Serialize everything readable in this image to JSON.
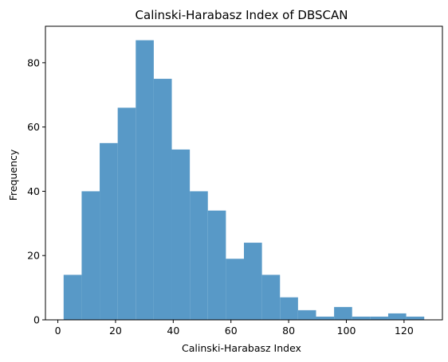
{
  "chart_data": {
    "type": "bar",
    "subtype": "histogram",
    "title": "Calinski-Harabasz Index of DBSCAN",
    "xlabel": "Calinski-Harabasz Index",
    "ylabel": "Frequency",
    "xlim": [
      -4.3,
      133.3
    ],
    "ylim": [
      0,
      91.35
    ],
    "x_ticks": [
      0,
      20,
      40,
      60,
      80,
      100,
      120
    ],
    "y_ticks": [
      0,
      20,
      40,
      60,
      80
    ],
    "bin_start": 2.0,
    "bin_width": 6.25,
    "bin_count": 20,
    "values": [
      14,
      40,
      55,
      66,
      87,
      75,
      53,
      40,
      34,
      19,
      24,
      14,
      7,
      3,
      1,
      4,
      1,
      1,
      2,
      1
    ],
    "bar_color": "#5899c7",
    "grid": false
  }
}
